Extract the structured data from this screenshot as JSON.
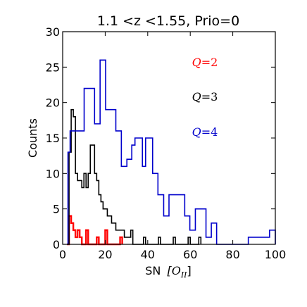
{
  "chart_data": {
    "type": "histogram",
    "title": "1.1 <z <1.55, Prio=0",
    "xlabel": "SN [O_II]",
    "xlabel_prefix": "SN",
    "xlabel_math": "[O",
    "xlabel_sub": "II",
    "xlabel_close": "]",
    "ylabel": "Counts",
    "xlim": [
      0,
      100
    ],
    "ylim": [
      0,
      30
    ],
    "xticks": [
      "0",
      "20",
      "40",
      "60",
      "80",
      "100"
    ],
    "yticks": [
      "0",
      "5",
      "10",
      "15",
      "20",
      "25",
      "30"
    ],
    "grid": false,
    "series": [
      {
        "name": "Q=2",
        "color": "#ff0000",
        "edges": [
          2,
          3,
          4,
          5,
          6,
          7,
          8,
          9,
          10,
          11,
          12,
          13,
          14,
          15,
          16,
          17,
          18,
          19,
          20,
          21,
          22,
          23,
          24,
          25,
          26,
          27,
          28
        ],
        "counts": [
          0,
          4,
          3,
          2,
          1,
          2,
          1,
          0,
          0,
          2,
          0,
          0,
          0,
          0,
          1,
          0,
          0,
          0,
          2,
          0,
          0,
          0,
          0,
          0,
          0,
          1
        ]
      },
      {
        "name": "Q=3",
        "color": "#000000",
        "edges": [
          2,
          3,
          4,
          5,
          6,
          7,
          8,
          9,
          10,
          11,
          12,
          13,
          14,
          15,
          16,
          17,
          18,
          19,
          20,
          21,
          22,
          23,
          24,
          25,
          26,
          27,
          28,
          29,
          30,
          31,
          32,
          33,
          34,
          35,
          36,
          37,
          38,
          39,
          40,
          41,
          42,
          43,
          44,
          45,
          46,
          47,
          48,
          49,
          50,
          51,
          52,
          53,
          54,
          55,
          56,
          57,
          58,
          59,
          60,
          61,
          62,
          63,
          64,
          65
        ],
        "counts": [
          0,
          13,
          19,
          18,
          10,
          9,
          9,
          8,
          10,
          8,
          10,
          14,
          14,
          10,
          9,
          7,
          6,
          5,
          5,
          4,
          4,
          3,
          3,
          2,
          2,
          2,
          2,
          1,
          1,
          1,
          2,
          0,
          0,
          0,
          0,
          0,
          1,
          0,
          0,
          0,
          0,
          0,
          0,
          1,
          0,
          0,
          0,
          0,
          0,
          0,
          1,
          0,
          0,
          0,
          0,
          0,
          0,
          1,
          0,
          0,
          0,
          0,
          1
        ]
      },
      {
        "name": "Q=4",
        "color": "#0000cc",
        "edges": [
          2.5,
          3.5,
          5.3,
          10.1,
          15,
          17.6,
          20.2,
          25,
          27.6,
          30.2,
          32.5,
          34,
          37.5,
          39,
          42.3,
          44.8,
          47.5,
          50,
          57.4,
          59.8,
          62.4,
          64.8,
          67.4,
          69.9,
          72.4,
          74.9,
          77.3,
          79.8,
          82.3,
          84.8,
          87.3,
          89.8,
          92.3,
          94.8,
          97.3,
          100
        ],
        "counts": [
          13,
          16,
          16,
          22,
          17,
          26,
          19,
          16,
          11,
          12,
          14,
          15,
          11,
          15,
          10,
          7,
          4,
          7,
          4,
          2,
          5,
          5,
          1,
          3,
          0,
          0,
          0,
          0,
          0,
          0,
          1,
          1,
          1,
          1,
          2
        ]
      }
    ]
  },
  "legend": {
    "q2": {
      "var": "Q",
      "eq": "=2",
      "color": "#ff0000"
    },
    "q3": {
      "var": "Q",
      "eq": "=3",
      "color": "#000000"
    },
    "q4": {
      "var": "Q",
      "eq": "=4",
      "color": "#0000cc"
    }
  }
}
